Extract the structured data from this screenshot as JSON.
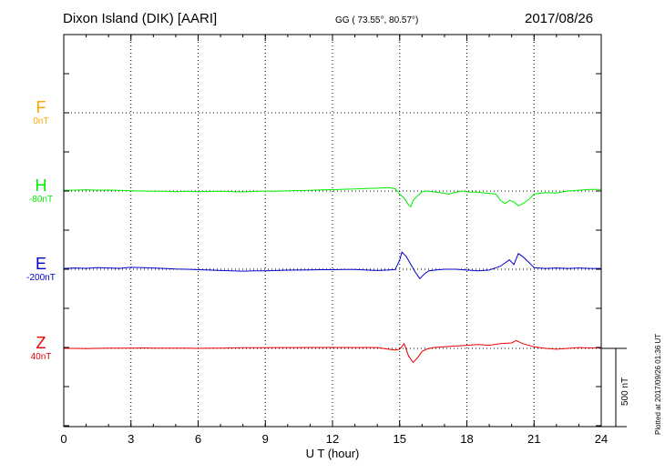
{
  "header": {
    "station": "Dixon Island (DIK)  [AARI]",
    "coords": "GG ( 73.55°,  80.57°)",
    "date": "2017/08/26"
  },
  "side": {
    "plotted": "Plotted at 2017/09/26 01:36 UT",
    "scale": "500 nT"
  },
  "chart_data": {
    "type": "line",
    "xlabel": "U T (hour)",
    "xlim": [
      0,
      24
    ],
    "xticks": [
      "0",
      "3",
      "6",
      "9",
      "12",
      "15",
      "18",
      "21",
      "24"
    ],
    "scale_bar_nT": 500,
    "channels": [
      {
        "name": "F",
        "offset_label": "0nT",
        "color": "#ffa500",
        "values": []
      },
      {
        "name": "H",
        "offset_label": "-80nT",
        "color": "#00ee00",
        "x": [
          0,
          0.5,
          1,
          1.5,
          2,
          2.5,
          3,
          3.5,
          4,
          4.5,
          5,
          5.5,
          6,
          6.5,
          7,
          7.5,
          8,
          8.5,
          9,
          9.5,
          10,
          10.5,
          11,
          11.5,
          12,
          12.5,
          13,
          13.5,
          14,
          14.5,
          14.8,
          15,
          15.2,
          15.4,
          15.5,
          15.6,
          15.8,
          16,
          16.2,
          16.5,
          16.8,
          17,
          17.2,
          17.5,
          17.8,
          18,
          18.5,
          19,
          19.3,
          19.5,
          19.7,
          19.9,
          20.1,
          20.3,
          20.5,
          20.8,
          21,
          21.5,
          22,
          22.5,
          23,
          23.5,
          24
        ],
        "values": [
          5,
          6,
          8,
          5,
          6,
          4,
          2,
          0,
          -2,
          -1,
          -5,
          -2,
          -4,
          -3,
          -2,
          -4,
          -5,
          -3,
          0,
          -1,
          2,
          3,
          4,
          7,
          9,
          11,
          13,
          16,
          18,
          22,
          14,
          -20,
          -45,
          -90,
          -100,
          -60,
          -30,
          -5,
          0,
          -5,
          -10,
          -15,
          -20,
          -8,
          0,
          -5,
          -8,
          -15,
          -20,
          -60,
          -80,
          -60,
          -70,
          -95,
          -80,
          -50,
          -20,
          -10,
          -12,
          0,
          5,
          10,
          10
        ]
      },
      {
        "name": "E",
        "offset_label": "-200nT",
        "color": "#0000cd",
        "x": [
          0,
          0.5,
          1,
          1.5,
          2,
          2.5,
          3,
          3.5,
          4,
          4.5,
          5,
          5.5,
          6,
          6.5,
          7,
          7.5,
          8,
          8.5,
          9,
          9.5,
          10,
          10.5,
          11,
          11.5,
          12,
          12.5,
          13,
          13.5,
          14,
          14.5,
          14.8,
          15,
          15.1,
          15.3,
          15.5,
          15.7,
          15.9,
          16.1,
          16.3,
          16.6,
          17,
          17.5,
          18,
          18.5,
          19,
          19.3,
          19.5,
          19.7,
          19.9,
          20.1,
          20.3,
          20.5,
          20.8,
          21,
          21.5,
          22,
          22.5,
          23,
          23.5,
          24
        ],
        "values": [
          5,
          8,
          6,
          10,
          8,
          6,
          12,
          10,
          8,
          5,
          2,
          0,
          -3,
          -5,
          -8,
          -10,
          -12,
          -10,
          -10,
          -8,
          -6,
          -5,
          -4,
          -3,
          -3,
          -2,
          -2,
          -5,
          -8,
          -5,
          -2,
          60,
          110,
          80,
          30,
          -20,
          -60,
          -30,
          -10,
          -5,
          0,
          0,
          -5,
          -10,
          -5,
          10,
          20,
          40,
          60,
          30,
          100,
          80,
          40,
          10,
          5,
          8,
          5,
          8,
          5,
          5
        ]
      },
      {
        "name": "Z",
        "offset_label": "40nT",
        "color": "#ee0000",
        "x": [
          0,
          0.5,
          1,
          1.5,
          2,
          2.5,
          3,
          3.5,
          4,
          4.5,
          5,
          5.5,
          6,
          6.5,
          7,
          7.5,
          8,
          8.5,
          9,
          9.5,
          10,
          10.5,
          11,
          11.5,
          12,
          12.5,
          13,
          13.5,
          14,
          14.5,
          14.8,
          15,
          15.2,
          15.4,
          15.6,
          15.8,
          16,
          16.2,
          16.5,
          17,
          17.5,
          18,
          18.5,
          19,
          19.5,
          20,
          20.2,
          20.5,
          21,
          21.5,
          22,
          22.5,
          23,
          23.5,
          24
        ],
        "values": [
          0,
          0,
          -2,
          0,
          1,
          2,
          2,
          3,
          2,
          1,
          2,
          1,
          0,
          1,
          2,
          3,
          4,
          4,
          4,
          5,
          5,
          5,
          6,
          6,
          6,
          6,
          5,
          6,
          5,
          -5,
          -10,
          -5,
          30,
          -50,
          -90,
          -60,
          -20,
          -5,
          5,
          10,
          15,
          20,
          25,
          20,
          30,
          35,
          50,
          30,
          10,
          0,
          -5,
          0,
          5,
          3,
          3
        ]
      }
    ]
  }
}
